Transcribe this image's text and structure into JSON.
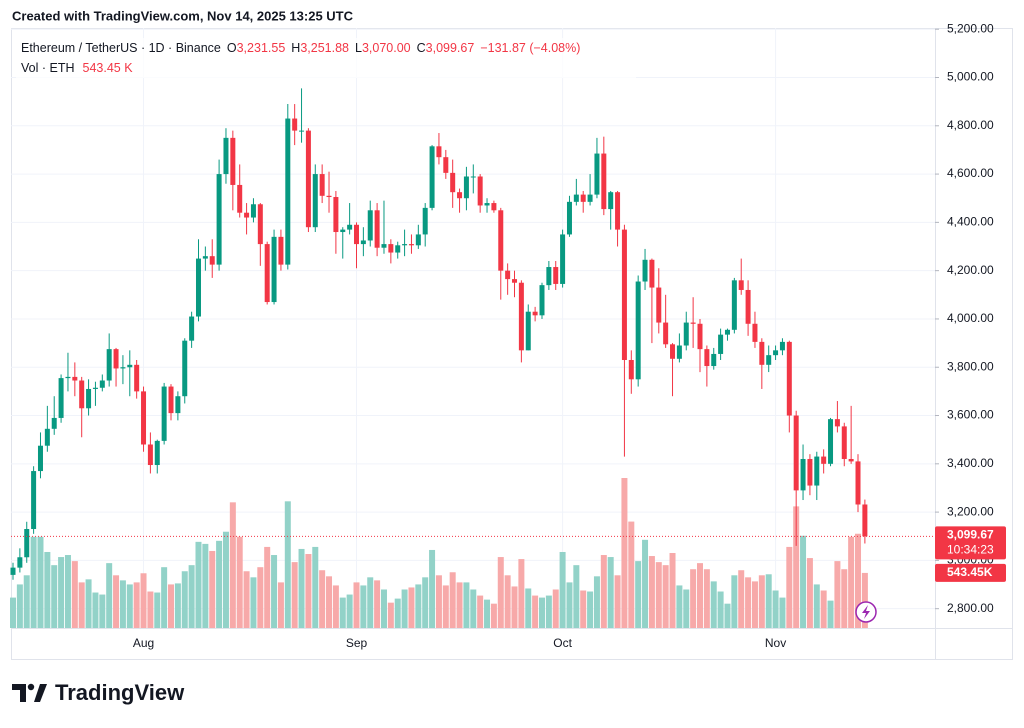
{
  "header": "Created with TradingView.com, Nov 14, 2025 13:25 UTC",
  "footer": "TradingView",
  "chart_data": {
    "type": "candlestick",
    "title": "Ethereum / TetherUS · 1D · Binance",
    "ohlc_labels": [
      "O",
      "H",
      "L",
      "C"
    ],
    "ohlc_values": [
      "3,231.55",
      "3,251.88",
      "3,070.00",
      "3,099.67"
    ],
    "change_label": "−131.87 (−4.08%)",
    "volume_title": "Vol · ETH",
    "volume_legend_label": "543.45 K",
    "last_price_label": "3,099.67",
    "countdown_label": "10:34:23",
    "last_volume_label": "543.45K",
    "up_color": "#089981",
    "down_color": "#f23645",
    "volume_up_color": "#92d2c8",
    "volume_down_color": "#f7a9a9",
    "grid": true,
    "ylim": [
      2720,
      5205
    ],
    "yticks": [
      {
        "value": 2800,
        "label": "2,800.00"
      },
      {
        "value": 3000,
        "label": "3,000.00"
      },
      {
        "value": 3200,
        "label": "3,200.00"
      },
      {
        "value": 3400,
        "label": "3,400.00"
      },
      {
        "value": 3600,
        "label": "3,600.00"
      },
      {
        "value": 3800,
        "label": "3,800.00"
      },
      {
        "value": 4000,
        "label": "4,000.00"
      },
      {
        "value": 4200,
        "label": "4,200.00"
      },
      {
        "value": 4400,
        "label": "4,400.00"
      },
      {
        "value": 4600,
        "label": "4,600.00"
      },
      {
        "value": 4800,
        "label": "4,800.00"
      },
      {
        "value": 5000,
        "label": "5,000.00"
      },
      {
        "value": 5200,
        "label": "5,200.00"
      }
    ],
    "categories": [
      null,
      null,
      null,
      null,
      null,
      null,
      null,
      null,
      null,
      null,
      null,
      null,
      null,
      null,
      null,
      null,
      null,
      null,
      null,
      "Aug",
      null,
      null,
      null,
      null,
      null,
      null,
      null,
      null,
      null,
      null,
      null,
      null,
      null,
      null,
      null,
      null,
      null,
      null,
      null,
      null,
      null,
      null,
      null,
      null,
      null,
      null,
      null,
      null,
      null,
      null,
      "Sep",
      null,
      null,
      null,
      null,
      null,
      null,
      null,
      null,
      null,
      null,
      null,
      null,
      null,
      null,
      null,
      null,
      null,
      null,
      null,
      null,
      null,
      null,
      null,
      null,
      null,
      null,
      null,
      null,
      null,
      "Oct",
      null,
      null,
      null,
      null,
      null,
      null,
      null,
      null,
      null,
      null,
      null,
      null,
      null,
      null,
      null,
      null,
      null,
      null,
      null,
      null,
      null,
      null,
      null,
      null,
      null,
      null,
      null,
      null,
      null,
      null,
      "Nov",
      null,
      null,
      null,
      null,
      null,
      null,
      null,
      null,
      null,
      null,
      null,
      null,
      null
    ],
    "open": [
      2940,
      2970,
      3013,
      3130,
      3370,
      3475,
      3545,
      3590,
      3755,
      3760,
      3745,
      3630,
      3710,
      3715,
      3745,
      3875,
      3795,
      3800,
      3810,
      3700,
      3480,
      3395,
      3495,
      3720,
      3610,
      3680,
      3910,
      4010,
      4250,
      4260,
      4225,
      4600,
      4750,
      4555,
      4440,
      4420,
      4475,
      4310,
      4070,
      4340,
      4225,
      4830,
      4780,
      4780,
      4380,
      4600,
      4510,
      4505,
      4360,
      4370,
      4390,
      4310,
      4325,
      4450,
      4295,
      4310,
      4275,
      4305,
      4310,
      4305,
      4350,
      4460,
      4715,
      4670,
      4605,
      4525,
      4500,
      4590,
      4590,
      4470,
      4480,
      4450,
      4200,
      4165,
      4150,
      3870,
      4030,
      4015,
      4140,
      4215,
      4145,
      4350,
      4485,
      4515,
      4485,
      4515,
      4685,
      4455,
      4525,
      4370,
      3830,
      3750,
      4155,
      4245,
      4130,
      3985,
      3895,
      3835,
      3890,
      3985,
      3980,
      3875,
      3805,
      3855,
      3935,
      3955,
      4160,
      4120,
      3980,
      3905,
      3810,
      3850,
      3870,
      3905,
      3600,
      3290,
      3420,
      3310,
      3430,
      3400,
      3585,
      3555,
      3420,
      3410,
      3231.55
    ],
    "high": [
      2990,
      3050,
      3160,
      3390,
      3530,
      3640,
      3680,
      3770,
      3860,
      3820,
      3760,
      3750,
      3740,
      3770,
      3940,
      3880,
      3850,
      3870,
      3830,
      3720,
      3530,
      3500,
      3735,
      3730,
      3700,
      3920,
      4030,
      4330,
      4300,
      4330,
      4660,
      4790,
      4780,
      4640,
      4480,
      4500,
      4480,
      4320,
      4370,
      4370,
      4890,
      4890,
      4955,
      4790,
      4640,
      4640,
      4610,
      4530,
      4380,
      4480,
      4400,
      4380,
      4490,
      4480,
      4490,
      4330,
      4320,
      4370,
      4350,
      4390,
      4480,
      4720,
      4770,
      4700,
      4660,
      4540,
      4630,
      4640,
      4600,
      4500,
      4490,
      4460,
      4230,
      4200,
      4160,
      4060,
      4050,
      4150,
      4240,
      4240,
      4370,
      4510,
      4580,
      4530,
      4600,
      4750,
      4755,
      4530,
      4530,
      4390,
      3870,
      4180,
      4290,
      4250,
      4210,
      4100,
      3900,
      3940,
      4030,
      4090,
      4000,
      3890,
      3880,
      3960,
      3960,
      4170,
      4250,
      4160,
      4030,
      3920,
      3890,
      3890,
      3920,
      3910,
      3620,
      3480,
      3440,
      3450,
      3460,
      3590,
      3660,
      3570,
      3640,
      3440,
      3251.88
    ],
    "low": [
      2920,
      2950,
      2990,
      3110,
      3340,
      3450,
      3520,
      3570,
      3700,
      3680,
      3510,
      3600,
      3640,
      3700,
      3720,
      3720,
      3730,
      3680,
      3670,
      3450,
      3360,
      3360,
      3480,
      3580,
      3580,
      3650,
      3880,
      3990,
      4200,
      4170,
      4200,
      4560,
      4450,
      4420,
      4350,
      4400,
      4220,
      4060,
      4060,
      4200,
      4205,
      4720,
      4730,
      4360,
      4360,
      4480,
      4440,
      4270,
      4250,
      4350,
      4210,
      4260,
      4300,
      4260,
      4270,
      4230,
      4250,
      4260,
      4270,
      4290,
      4300,
      4450,
      4640,
      4580,
      4460,
      4440,
      4450,
      4520,
      4440,
      4440,
      4440,
      4080,
      4100,
      4090,
      3820,
      3870,
      3990,
      4000,
      4120,
      4120,
      4130,
      4340,
      4470,
      4440,
      4470,
      4500,
      4430,
      4370,
      4300,
      3430,
      3690,
      3720,
      4120,
      3900,
      3940,
      3880,
      3680,
      3820,
      3870,
      3880,
      3780,
      3720,
      3790,
      3830,
      3910,
      3940,
      4100,
      3930,
      3880,
      3710,
      3780,
      3830,
      3850,
      3530,
      3060,
      3250,
      3270,
      3250,
      3360,
      3390,
      3530,
      3390,
      3400,
      3200,
      3070
    ],
    "close": [
      2970,
      3013,
      3130,
      3370,
      3475,
      3545,
      3590,
      3755,
      3760,
      3745,
      3630,
      3710,
      3715,
      3745,
      3875,
      3795,
      3800,
      3810,
      3700,
      3480,
      3395,
      3495,
      3720,
      3610,
      3680,
      3910,
      4010,
      4250,
      4260,
      4225,
      4600,
      4750,
      4555,
      4440,
      4420,
      4475,
      4310,
      4070,
      4340,
      4225,
      4830,
      4780,
      4780,
      4380,
      4600,
      4510,
      4505,
      4360,
      4370,
      4390,
      4310,
      4325,
      4450,
      4295,
      4310,
      4275,
      4305,
      4310,
      4305,
      4350,
      4460,
      4715,
      4670,
      4605,
      4525,
      4500,
      4590,
      4590,
      4470,
      4480,
      4450,
      4200,
      4165,
      4150,
      3870,
      4030,
      4015,
      4140,
      4215,
      4145,
      4350,
      4485,
      4515,
      4485,
      4515,
      4685,
      4455,
      4525,
      4370,
      3830,
      3750,
      4155,
      4245,
      4130,
      3985,
      3895,
      3835,
      3890,
      3985,
      3980,
      3875,
      3805,
      3855,
      3935,
      3955,
      4160,
      4120,
      3980,
      3905,
      3810,
      3850,
      3870,
      3905,
      3600,
      3290,
      3420,
      3310,
      3430,
      3400,
      3585,
      3555,
      3420,
      3410,
      3231.55,
      3099.67
    ],
    "volume": [
      300000,
      430000,
      520000,
      900000,
      900000,
      750000,
      620000,
      700000,
      720000,
      660000,
      450000,
      480000,
      350000,
      330000,
      640000,
      520000,
      470000,
      430000,
      450000,
      540000,
      360000,
      350000,
      600000,
      430000,
      440000,
      560000,
      620000,
      850000,
      830000,
      760000,
      860000,
      950000,
      1240000,
      900000,
      560000,
      500000,
      600000,
      800000,
      720000,
      450000,
      1250000,
      650000,
      780000,
      730000,
      800000,
      570000,
      510000,
      420000,
      300000,
      330000,
      450000,
      420000,
      500000,
      470000,
      380000,
      250000,
      290000,
      380000,
      400000,
      430000,
      500000,
      770000,
      520000,
      420000,
      550000,
      450000,
      450000,
      380000,
      320000,
      280000,
      240000,
      700000,
      520000,
      410000,
      680000,
      390000,
      320000,
      300000,
      320000,
      380000,
      750000,
      450000,
      620000,
      370000,
      360000,
      510000,
      720000,
      700000,
      520000,
      1480000,
      1050000,
      660000,
      870000,
      710000,
      650000,
      620000,
      740000,
      420000,
      380000,
      580000,
      640000,
      580000,
      460000,
      360000,
      240000,
      520000,
      570000,
      500000,
      460000,
      520000,
      530000,
      370000,
      300000,
      800000,
      1200000,
      910000,
      690000,
      430000,
      370000,
      270000,
      660000,
      580000,
      900000,
      930000,
      543450
    ]
  }
}
